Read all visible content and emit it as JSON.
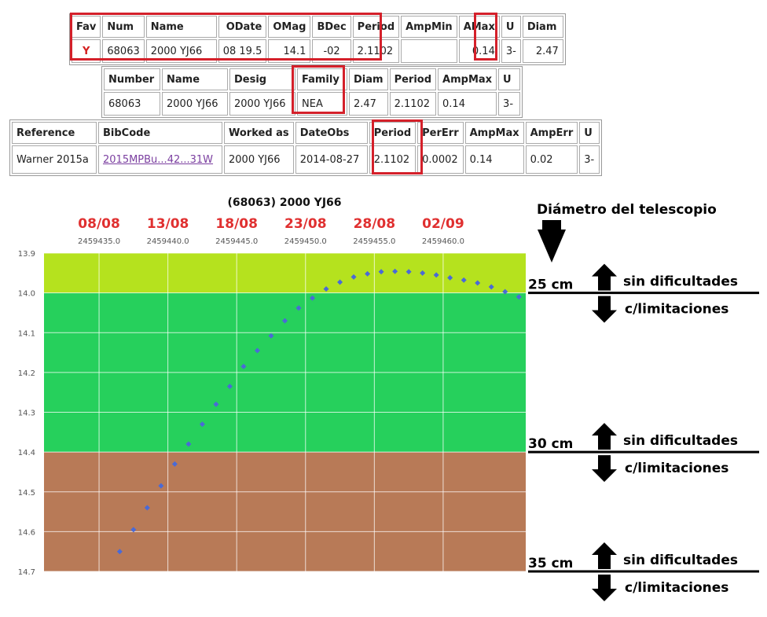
{
  "table1": {
    "headers": [
      "Fav",
      "Num",
      "Name",
      "ODate",
      "OMag",
      "BDec",
      "Period",
      "AmpMin",
      "AMax",
      "U",
      "Diam"
    ],
    "row": [
      "Y",
      "68063",
      "2000 YJ66",
      "08 19.5",
      "14.1",
      "-02",
      "2.1102",
      "",
      "0.14",
      "3-",
      "2.47"
    ]
  },
  "table2": {
    "headers": [
      "Number",
      "Name",
      "Desig",
      "Family",
      "Diam",
      "Period",
      "AmpMax",
      "U"
    ],
    "row": [
      "68063",
      "2000 YJ66",
      "2000 YJ66",
      "NEA",
      "2.47",
      "2.1102",
      "0.14",
      "3-"
    ]
  },
  "table3": {
    "headers": [
      "Reference",
      "BibCode",
      "Worked as",
      "DateObs",
      "Period",
      "PerErr",
      "AmpMax",
      "AmpErr",
      "U"
    ],
    "row": [
      "Warner 2015a",
      "2015MPBu...42...31W",
      "2000 YJ66",
      "2014-08-27",
      "2.1102",
      "0.0002",
      "0.14",
      "0.02",
      "3-"
    ]
  },
  "colors": {
    "highlight": "#d4202a",
    "date_label": "#e03030",
    "band_easy": "#b5e21e",
    "band_limited": "#26d05c",
    "band_hard": "#b87a57",
    "points": "#4a6ad6"
  },
  "chart_data": {
    "type": "scatter",
    "title": "(68063) 2000 YJ66",
    "x_dates": [
      "08/08",
      "13/08",
      "18/08",
      "23/08",
      "28/08",
      "02/09"
    ],
    "x_jd": [
      "2459435.0",
      "2459440.0",
      "2459445.0",
      "2459450.0",
      "2459455.0",
      "2459460.0"
    ],
    "x_jd_values": [
      2459435.0,
      2459440.0,
      2459445.0,
      2459450.0,
      2459455.0,
      2459460.0
    ],
    "xlim": [
      2459431.0,
      2459466.0
    ],
    "ylim": [
      13.9,
      14.7
    ],
    "y_inverted": true,
    "y_ticks": [
      "13.9",
      "14.0",
      "14.1",
      "14.2",
      "14.3",
      "14.4",
      "14.5",
      "14.6",
      "14.7"
    ],
    "grid": true,
    "bands": [
      {
        "from": 13.9,
        "to": 14.0,
        "color_key": "band_easy"
      },
      {
        "from": 14.0,
        "to": 14.4,
        "color_key": "band_limited"
      },
      {
        "from": 14.4,
        "to": 14.7,
        "color_key": "band_hard"
      }
    ],
    "points": [
      {
        "x": 2459436.5,
        "y": 14.65
      },
      {
        "x": 2459437.5,
        "y": 14.595
      },
      {
        "x": 2459438.5,
        "y": 14.54
      },
      {
        "x": 2459439.5,
        "y": 14.485
      },
      {
        "x": 2459440.5,
        "y": 14.43
      },
      {
        "x": 2459441.5,
        "y": 14.38
      },
      {
        "x": 2459442.5,
        "y": 14.33
      },
      {
        "x": 2459443.5,
        "y": 14.28
      },
      {
        "x": 2459444.5,
        "y": 14.235
      },
      {
        "x": 2459445.5,
        "y": 14.185
      },
      {
        "x": 2459446.5,
        "y": 14.145
      },
      {
        "x": 2459447.5,
        "y": 14.108
      },
      {
        "x": 2459448.5,
        "y": 14.07
      },
      {
        "x": 2459449.5,
        "y": 14.038
      },
      {
        "x": 2459450.5,
        "y": 14.013
      },
      {
        "x": 2459451.5,
        "y": 13.99
      },
      {
        "x": 2459452.5,
        "y": 13.973
      },
      {
        "x": 2459453.5,
        "y": 13.96
      },
      {
        "x": 2459454.5,
        "y": 13.952
      },
      {
        "x": 2459455.5,
        "y": 13.947
      },
      {
        "x": 2459456.5,
        "y": 13.946
      },
      {
        "x": 2459457.5,
        "y": 13.947
      },
      {
        "x": 2459458.5,
        "y": 13.95
      },
      {
        "x": 2459459.5,
        "y": 13.955
      },
      {
        "x": 2459460.5,
        "y": 13.962
      },
      {
        "x": 2459461.5,
        "y": 13.968
      },
      {
        "x": 2459462.5,
        "y": 13.975
      },
      {
        "x": 2459463.5,
        "y": 13.985
      },
      {
        "x": 2459464.5,
        "y": 13.997
      },
      {
        "x": 2459465.5,
        "y": 14.01
      }
    ]
  },
  "legend": {
    "title": "Diámetro del telescopio",
    "levels": [
      {
        "size": "25 cm",
        "mag": 14.0,
        "above": "sin dificultades",
        "below": "c/limitaciones"
      },
      {
        "size": "30 cm",
        "mag": 14.4,
        "above": "sin dificultades",
        "below": "c/limitaciones"
      },
      {
        "size": "35 cm",
        "mag": 14.7,
        "above": "sin dificultades",
        "below": "c/limitaciones"
      }
    ]
  }
}
